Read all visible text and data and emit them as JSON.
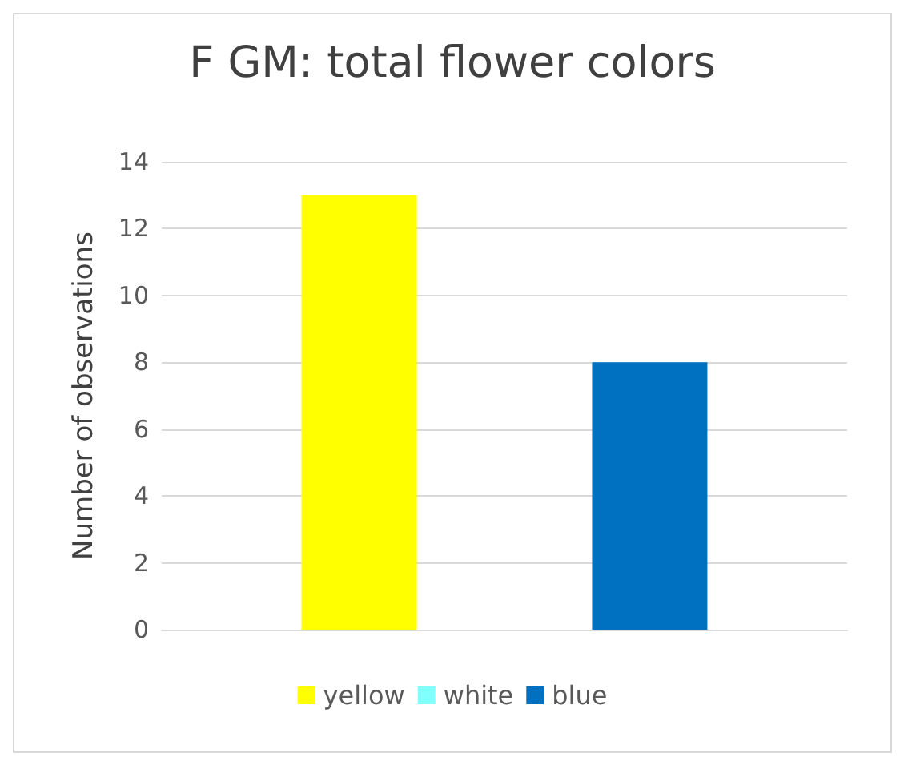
{
  "chart_data": {
    "type": "bar",
    "title": "F GM: total flower colors",
    "ylabel": "Number of observations",
    "categories": [
      null
    ],
    "series": [
      {
        "name": "yellow",
        "color": "#ffff00",
        "values": [
          13
        ]
      },
      {
        "name": "white",
        "color": "#80ffff",
        "values": [
          0
        ]
      },
      {
        "name": "blue",
        "color": "#0070c0",
        "values": [
          8
        ]
      }
    ],
    "ylim": [
      0,
      14
    ],
    "yticks": [
      0,
      2,
      4,
      6,
      8,
      10,
      12,
      14
    ],
    "grid": "y",
    "legend": "bottom"
  }
}
